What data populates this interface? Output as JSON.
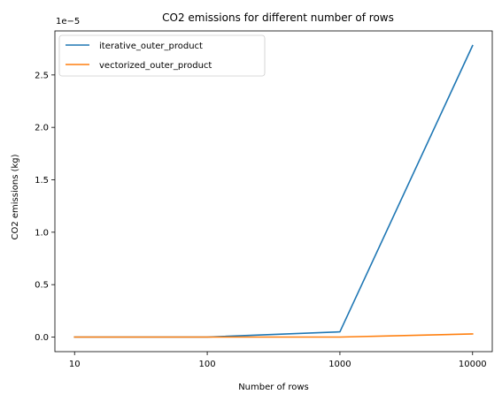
{
  "chart_data": {
    "type": "line",
    "title": "CO2 emissions for different number of rows",
    "xlabel": "Number of rows",
    "ylabel": "CO2 emissions (kg)",
    "y_offset_label": "1e−5",
    "x_scale": "categorical",
    "categories": [
      "10",
      "100",
      "1000",
      "10000"
    ],
    "y_ticks": [
      0.0,
      0.5,
      1.0,
      1.5,
      2.0,
      2.5
    ],
    "y_tick_labels": [
      "0.0",
      "0.5",
      "1.0",
      "1.5",
      "2.0",
      "2.5"
    ],
    "y_multiplier": 1e-05,
    "ylim": [
      -0.139,
      2.92
    ],
    "grid": false,
    "legend_position": "top-left",
    "series": [
      {
        "name": "iterative_outer_product",
        "color": "#1f77b4",
        "values": [
          0.0,
          0.0,
          0.05,
          2.78
        ]
      },
      {
        "name": "vectorized_outer_product",
        "color": "#ff7f0e",
        "values": [
          0.0,
          0.0,
          0.0,
          0.03
        ]
      }
    ]
  }
}
